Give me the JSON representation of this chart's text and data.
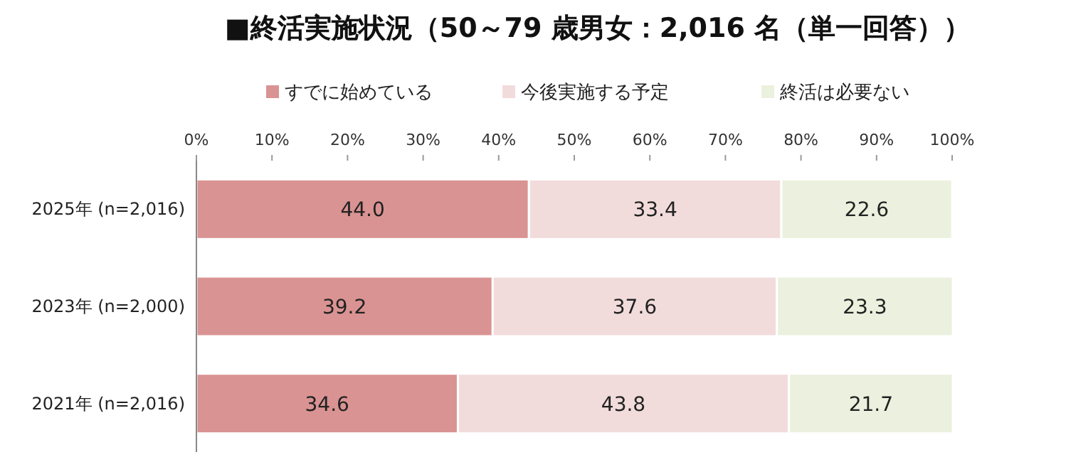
{
  "chart_data": {
    "type": "bar",
    "orientation": "horizontal",
    "stacked": true,
    "title": "■終活実施状況（50～79 歳男女：2,016 名（単一回答））",
    "categories": [
      "2025年 (n=2,016)",
      "2023年 (n=2,000)",
      "2021年 (n=2,016)"
    ],
    "series": [
      {
        "name": "すでに始めている",
        "color": "#d99392",
        "values": [
          44.0,
          39.2,
          34.6
        ],
        "value_labels": [
          "44.0",
          "39.2",
          "34.6"
        ]
      },
      {
        "name": "今後実施する予定",
        "color": "#f2dcdb",
        "values": [
          33.4,
          37.6,
          43.8
        ],
        "value_labels": [
          "33.4",
          "37.6",
          "43.8"
        ]
      },
      {
        "name": "終活は必要ない",
        "color": "#ebf1de",
        "values": [
          22.6,
          23.3,
          21.7
        ],
        "value_labels": [
          "22.6",
          "23.3",
          "21.7"
        ]
      }
    ],
    "xlim": [
      0,
      100
    ],
    "xticks": [
      {
        "value": 0,
        "label": "0%"
      },
      {
        "value": 10,
        "label": "10%"
      },
      {
        "value": 20,
        "label": "20%"
      },
      {
        "value": 30,
        "label": "30%"
      },
      {
        "value": 40,
        "label": "40%"
      },
      {
        "value": 50,
        "label": "50%"
      },
      {
        "value": 60,
        "label": "60%"
      },
      {
        "value": 70,
        "label": "70%"
      },
      {
        "value": 80,
        "label": "80%"
      },
      {
        "value": 90,
        "label": "90%"
      },
      {
        "value": 100,
        "label": "100%"
      }
    ],
    "legend": "top",
    "grid": false
  }
}
